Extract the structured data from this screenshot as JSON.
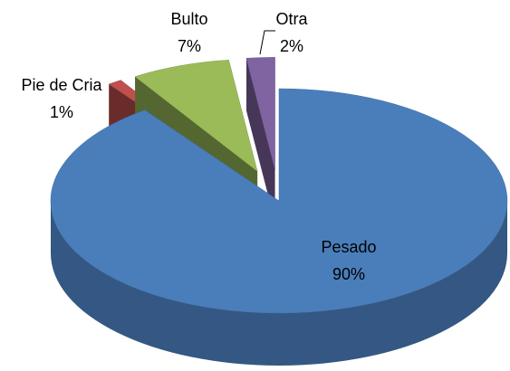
{
  "chart_data": {
    "type": "pie",
    "categories": [
      "Pesado",
      "Pie de Cria",
      "Bulto",
      "Otra"
    ],
    "values": [
      90,
      1,
      7,
      2
    ],
    "value_labels": [
      "90%",
      "1%",
      "7%",
      "2%"
    ],
    "colors": [
      "#4a7ebb",
      "#c0504d",
      "#9bbb59",
      "#8064a2"
    ],
    "exploded": [
      false,
      true,
      true,
      true
    ]
  }
}
